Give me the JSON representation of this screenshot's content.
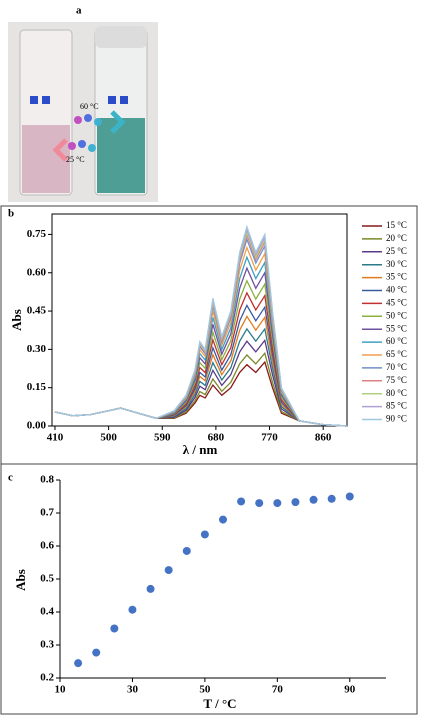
{
  "panel_a": {
    "label": "a",
    "hot_label": "60 °C",
    "cold_label": "25 °C"
  },
  "chart_data": [
    {
      "type": "line",
      "panel_label": "b",
      "xlabel": "λ / nm",
      "ylabel": "Abs",
      "x": [
        410,
        440,
        470,
        500,
        520,
        550,
        580,
        610,
        630,
        645,
        653,
        662,
        675,
        690,
        705,
        720,
        732,
        747,
        762,
        775,
        790,
        820,
        860,
        900
      ],
      "xlim": [
        405,
        900
      ],
      "xticks": [
        410,
        500,
        590,
        680,
        770,
        860
      ],
      "ylim": [
        0,
        0.83
      ],
      "yticks": [
        {
          "value": 0,
          "label": "0.00"
        },
        {
          "value": 0.15,
          "label": "0.15"
        },
        {
          "value": 0.3,
          "label": "0.30"
        },
        {
          "value": 0.45,
          "label": "0.45"
        },
        {
          "value": 0.6,
          "label": "0.60"
        },
        {
          "value": 0.75,
          "label": "0.75"
        }
      ],
      "grid": false,
      "legend": "right",
      "series": [
        {
          "name": "15 °C",
          "color": "#8b1a1a",
          "values": [
            0.055,
            0.04,
            0.045,
            0.06,
            0.07,
            0.05,
            0.03,
            0.03,
            0.05,
            0.09,
            0.12,
            0.11,
            0.16,
            0.12,
            0.15,
            0.21,
            0.24,
            0.21,
            0.25,
            0.15,
            0.05,
            0.02,
            0.005,
            0
          ]
        },
        {
          "name": "20 °C",
          "color": "#7a8a2a",
          "values": [
            0.055,
            0.04,
            0.045,
            0.06,
            0.07,
            0.05,
            0.03,
            0.032,
            0.055,
            0.099,
            0.135,
            0.123,
            0.184,
            0.136,
            0.171,
            0.243,
            0.278,
            0.243,
            0.285,
            0.171,
            0.057,
            0.02,
            0.005,
            0
          ]
        },
        {
          "name": "25 °C",
          "color": "#5b3a8a",
          "values": [
            0.055,
            0.04,
            0.045,
            0.06,
            0.07,
            0.05,
            0.03,
            0.035,
            0.062,
            0.112,
            0.156,
            0.142,
            0.218,
            0.159,
            0.201,
            0.29,
            0.332,
            0.29,
            0.335,
            0.201,
            0.067,
            0.02,
            0.005,
            0
          ]
        },
        {
          "name": "30 °C",
          "color": "#2a7a8a",
          "values": [
            0.055,
            0.04,
            0.045,
            0.06,
            0.07,
            0.05,
            0.03,
            0.038,
            0.068,
            0.124,
            0.175,
            0.159,
            0.248,
            0.18,
            0.228,
            0.332,
            0.38,
            0.332,
            0.38,
            0.228,
            0.076,
            0.02,
            0.005,
            0
          ]
        },
        {
          "name": "35 °C",
          "color": "#e07a20",
          "values": [
            0.055,
            0.04,
            0.045,
            0.06,
            0.07,
            0.05,
            0.03,
            0.041,
            0.075,
            0.136,
            0.194,
            0.177,
            0.279,
            0.201,
            0.255,
            0.375,
            0.429,
            0.375,
            0.425,
            0.255,
            0.085,
            0.02,
            0.005,
            0
          ]
        },
        {
          "name": "40 °C",
          "color": "#3a5aa0",
          "values": [
            0.055,
            0.04,
            0.045,
            0.06,
            0.07,
            0.05,
            0.03,
            0.043,
            0.08,
            0.146,
            0.21,
            0.192,
            0.306,
            0.219,
            0.279,
            0.412,
            0.472,
            0.412,
            0.465,
            0.279,
            0.093,
            0.02,
            0.005,
            0
          ]
        },
        {
          "name": "45 °C",
          "color": "#c03030",
          "values": [
            0.055,
            0.04,
            0.045,
            0.06,
            0.07,
            0.05,
            0.03,
            0.046,
            0.086,
            0.158,
            0.229,
            0.209,
            0.337,
            0.24,
            0.306,
            0.454,
            0.521,
            0.454,
            0.51,
            0.306,
            0.102,
            0.02,
            0.005,
            0
          ]
        },
        {
          "name": "50 °C",
          "color": "#8ab040",
          "values": [
            0.055,
            0.04,
            0.045,
            0.06,
            0.07,
            0.05,
            0.03,
            0.048,
            0.093,
            0.169,
            0.248,
            0.226,
            0.367,
            0.26,
            0.333,
            0.497,
            0.569,
            0.497,
            0.555,
            0.333,
            0.111,
            0.02,
            0.005,
            0
          ]
        },
        {
          "name": "55 °C",
          "color": "#7050a0",
          "values": [
            0.055,
            0.04,
            0.045,
            0.06,
            0.07,
            0.05,
            0.03,
            0.051,
            0.099,
            0.181,
            0.267,
            0.243,
            0.398,
            0.281,
            0.36,
            0.539,
            0.618,
            0.539,
            0.6,
            0.36,
            0.12,
            0.02,
            0.005,
            0
          ]
        },
        {
          "name": "60 °C",
          "color": "#40a0c0",
          "values": [
            0.055,
            0.04,
            0.045,
            0.06,
            0.07,
            0.05,
            0.03,
            0.053,
            0.105,
            0.191,
            0.284,
            0.258,
            0.425,
            0.299,
            0.384,
            0.577,
            0.661,
            0.577,
            0.64,
            0.384,
            0.128,
            0.02,
            0.005,
            0
          ]
        },
        {
          "name": "65 °C",
          "color": "#f0a050",
          "values": [
            0.055,
            0.04,
            0.045,
            0.06,
            0.07,
            0.05,
            0.03,
            0.056,
            0.11,
            0.201,
            0.299,
            0.272,
            0.449,
            0.316,
            0.405,
            0.61,
            0.699,
            0.61,
            0.675,
            0.405,
            0.135,
            0.02,
            0.005,
            0
          ]
        },
        {
          "name": "70 °C",
          "color": "#7090c8",
          "values": [
            0.055,
            0.04,
            0.045,
            0.06,
            0.07,
            0.05,
            0.03,
            0.057,
            0.114,
            0.208,
            0.311,
            0.283,
            0.469,
            0.329,
            0.423,
            0.638,
            0.731,
            0.638,
            0.705,
            0.423,
            0.141,
            0.02,
            0.005,
            0
          ]
        },
        {
          "name": "75 °C",
          "color": "#e08080",
          "values": [
            0.055,
            0.04,
            0.045,
            0.06,
            0.07,
            0.05,
            0.03,
            0.058,
            0.116,
            0.212,
            0.317,
            0.289,
            0.48,
            0.336,
            0.432,
            0.652,
            0.748,
            0.652,
            0.72,
            0.432,
            0.144,
            0.02,
            0.005,
            0
          ]
        },
        {
          "name": "80 °C",
          "color": "#b0d080",
          "values": [
            0.055,
            0.04,
            0.045,
            0.06,
            0.07,
            0.05,
            0.03,
            0.059,
            0.117,
            0.215,
            0.322,
            0.292,
            0.486,
            0.341,
            0.438,
            0.661,
            0.758,
            0.661,
            0.73,
            0.438,
            0.146,
            0.02,
            0.005,
            0
          ]
        },
        {
          "name": "85 °C",
          "color": "#b0a0d0",
          "values": [
            0.055,
            0.04,
            0.045,
            0.06,
            0.07,
            0.05,
            0.03,
            0.059,
            0.119,
            0.217,
            0.326,
            0.296,
            0.493,
            0.345,
            0.444,
            0.671,
            0.769,
            0.671,
            0.74,
            0.444,
            0.148,
            0.02,
            0.005,
            0
          ]
        },
        {
          "name": "90 °C",
          "color": "#a0c8e0",
          "values": [
            0.055,
            0.04,
            0.045,
            0.06,
            0.07,
            0.05,
            0.03,
            0.06,
            0.12,
            0.22,
            0.33,
            0.3,
            0.5,
            0.35,
            0.45,
            0.68,
            0.78,
            0.68,
            0.75,
            0.45,
            0.15,
            0.02,
            0.005,
            0
          ]
        }
      ]
    },
    {
      "type": "scatter",
      "panel_label": "c",
      "xlabel": "T / °C",
      "ylabel": "Abs",
      "color": "#4472c4",
      "x": [
        15,
        20,
        25,
        30,
        35,
        40,
        45,
        50,
        55,
        60,
        65,
        70,
        75,
        80,
        85,
        90
      ],
      "values": [
        0.245,
        0.277,
        0.35,
        0.407,
        0.47,
        0.527,
        0.585,
        0.635,
        0.68,
        0.735,
        0.73,
        0.73,
        0.733,
        0.74,
        0.743,
        0.75
      ],
      "xlim": [
        10,
        100
      ],
      "xticks": [
        10,
        30,
        50,
        70,
        90
      ],
      "ylim": [
        0.2,
        0.8
      ],
      "yticks": [
        0.2,
        0.3,
        0.4,
        0.5,
        0.6,
        0.7,
        0.8
      ],
      "grid": false
    }
  ]
}
